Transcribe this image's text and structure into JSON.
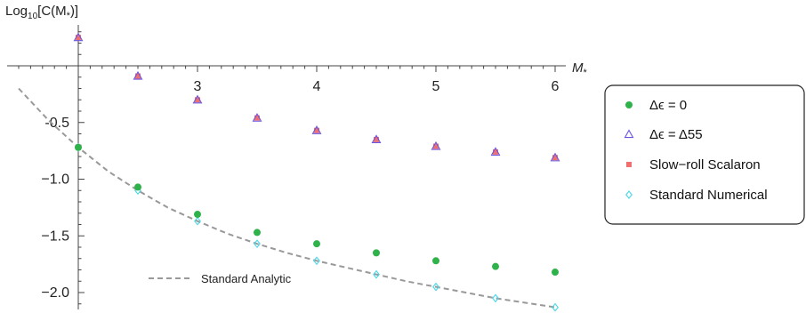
{
  "chart_data": {
    "type": "scatter",
    "ylabel_prefix": "Log",
    "ylabel_sub": "10",
    "ylabel_suffix": "[C(M",
    "ylabel_star": "*",
    "ylabel_close": ")]",
    "xlabel": "M",
    "xlabel_star": "*",
    "xlim": [
      2.0,
      6.0
    ],
    "ylim": [
      -2.25,
      0.4
    ],
    "x_ticks": [
      3,
      4,
      5,
      6
    ],
    "x_tick_labels": [
      "3",
      "4",
      "5",
      "6"
    ],
    "y_ticks": [
      -0.5,
      -1.0,
      -1.5,
      -2.0
    ],
    "y_tick_labels": [
      "-0.5",
      "−1.0",
      "−1.5",
      "−2.0"
    ],
    "grid": false,
    "legend_position": "right",
    "series": [
      {
        "name": "Δϵ = 0",
        "marker": "filled-circle",
        "color": "#2fb24a",
        "x": [
          2.0,
          2.5,
          3.0,
          3.5,
          4.0,
          4.5,
          5.0,
          5.5,
          6.0
        ],
        "y": [
          -0.72,
          -1.07,
          -1.31,
          -1.47,
          -1.57,
          -1.65,
          -1.72,
          -1.77,
          -1.82
        ]
      },
      {
        "name": "Δϵ = Δ55",
        "marker": "open-triangle",
        "color": "#6a55e0",
        "x": [
          2.0,
          2.5,
          3.0,
          3.5,
          4.0,
          4.5,
          5.0,
          5.5,
          6.0
        ],
        "y": [
          0.25,
          -0.09,
          -0.3,
          -0.46,
          -0.57,
          -0.65,
          -0.71,
          -0.76,
          -0.81
        ]
      },
      {
        "name": "Slow−roll Scalaron",
        "marker": "filled-square",
        "color": "#f07070",
        "x": [
          2.0,
          2.5,
          3.0,
          3.5,
          4.0,
          4.5,
          5.0,
          5.5,
          6.0
        ],
        "y": [
          0.25,
          -0.09,
          -0.3,
          -0.46,
          -0.57,
          -0.65,
          -0.71,
          -0.76,
          -0.81
        ]
      },
      {
        "name": "Standard Numerical",
        "marker": "open-diamond",
        "color": "#48d8e8",
        "x": [
          2.0,
          2.5,
          3.0,
          3.5,
          4.0,
          4.5,
          5.0,
          5.5,
          6.0
        ],
        "y": [
          -0.72,
          -1.1,
          -1.37,
          -1.57,
          -1.72,
          -1.84,
          -1.95,
          -2.05,
          -2.13
        ]
      }
    ],
    "analytic_curve": {
      "name": "Standard Analytic",
      "style": "dashed",
      "color": "#999999",
      "x": [
        1.5,
        1.75,
        2.0,
        2.25,
        2.5,
        2.75,
        3.0,
        3.25,
        3.5,
        3.75,
        4.0,
        4.25,
        4.5,
        4.75,
        5.0,
        5.25,
        5.5,
        5.75,
        6.0
      ],
      "y": [
        -0.2,
        -0.48,
        -0.72,
        -0.93,
        -1.1,
        -1.25,
        -1.37,
        -1.48,
        -1.57,
        -1.65,
        -1.72,
        -1.78,
        -1.84,
        -1.9,
        -1.95,
        -2.0,
        -2.05,
        -2.09,
        -2.13
      ]
    }
  }
}
